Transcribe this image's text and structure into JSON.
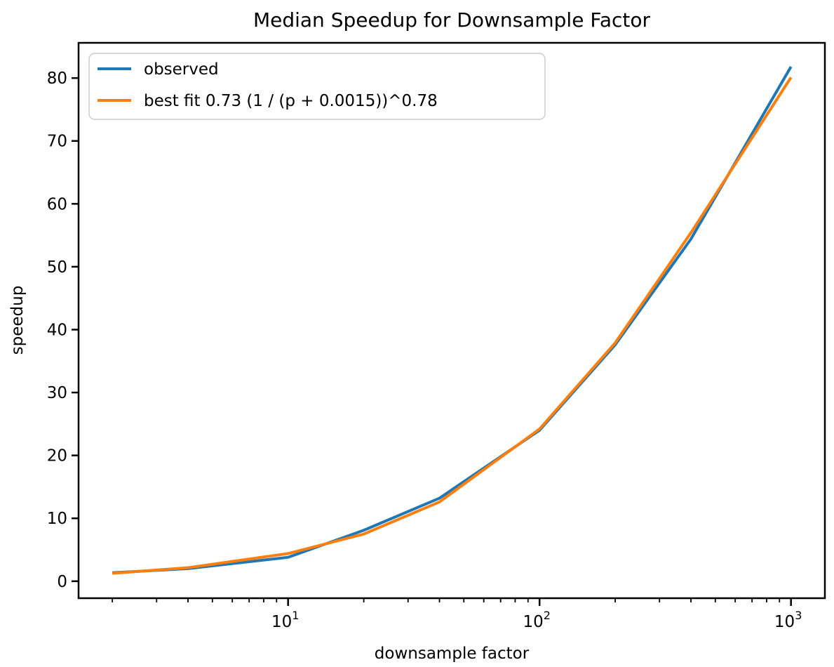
{
  "figure": {
    "background": "#ffffff",
    "spine_color": "#000000",
    "text_color": "#000000"
  },
  "chart_data": {
    "type": "line",
    "title": "Median Speedup for Downsample Factor",
    "xlabel": "downsample factor",
    "ylabel": "speedup",
    "x_scale": "log10",
    "xlim": [
      1.468,
      1364
    ],
    "ylim": [
      -2.7,
      85.6
    ],
    "grid": false,
    "legend_position": "upper left",
    "x": [
      2,
      4,
      10,
      20,
      40,
      100,
      200,
      400,
      1000
    ],
    "series": [
      {
        "name": "observed",
        "color": "#1f77b4",
        "values": [
          1.35,
          2.0,
          3.8,
          8.1,
          13.2,
          24.0,
          37.6,
          54.4,
          81.8
        ]
      },
      {
        "name": "best fit 0.73 (1 / (p + 0.0015))^0.78",
        "color": "#ff7f0e",
        "values": [
          1.25,
          2.15,
          4.4,
          7.5,
          12.6,
          24.2,
          37.9,
          55.4,
          80.1
        ]
      }
    ],
    "y_ticks": [
      0,
      10,
      20,
      30,
      40,
      50,
      60,
      70,
      80
    ],
    "x_major_ticks": [
      {
        "value": 10,
        "base": "10",
        "exp": "1"
      },
      {
        "value": 100,
        "base": "10",
        "exp": "2"
      },
      {
        "value": 1000,
        "base": "10",
        "exp": "3"
      }
    ],
    "x_minor_ticks": [
      2,
      3,
      4,
      5,
      6,
      7,
      8,
      9,
      20,
      30,
      40,
      50,
      60,
      70,
      80,
      90,
      200,
      300,
      400,
      500,
      600,
      700,
      800,
      900
    ]
  },
  "legend": {
    "border_color": "#cccccc",
    "fill_color": "#ffffff"
  }
}
